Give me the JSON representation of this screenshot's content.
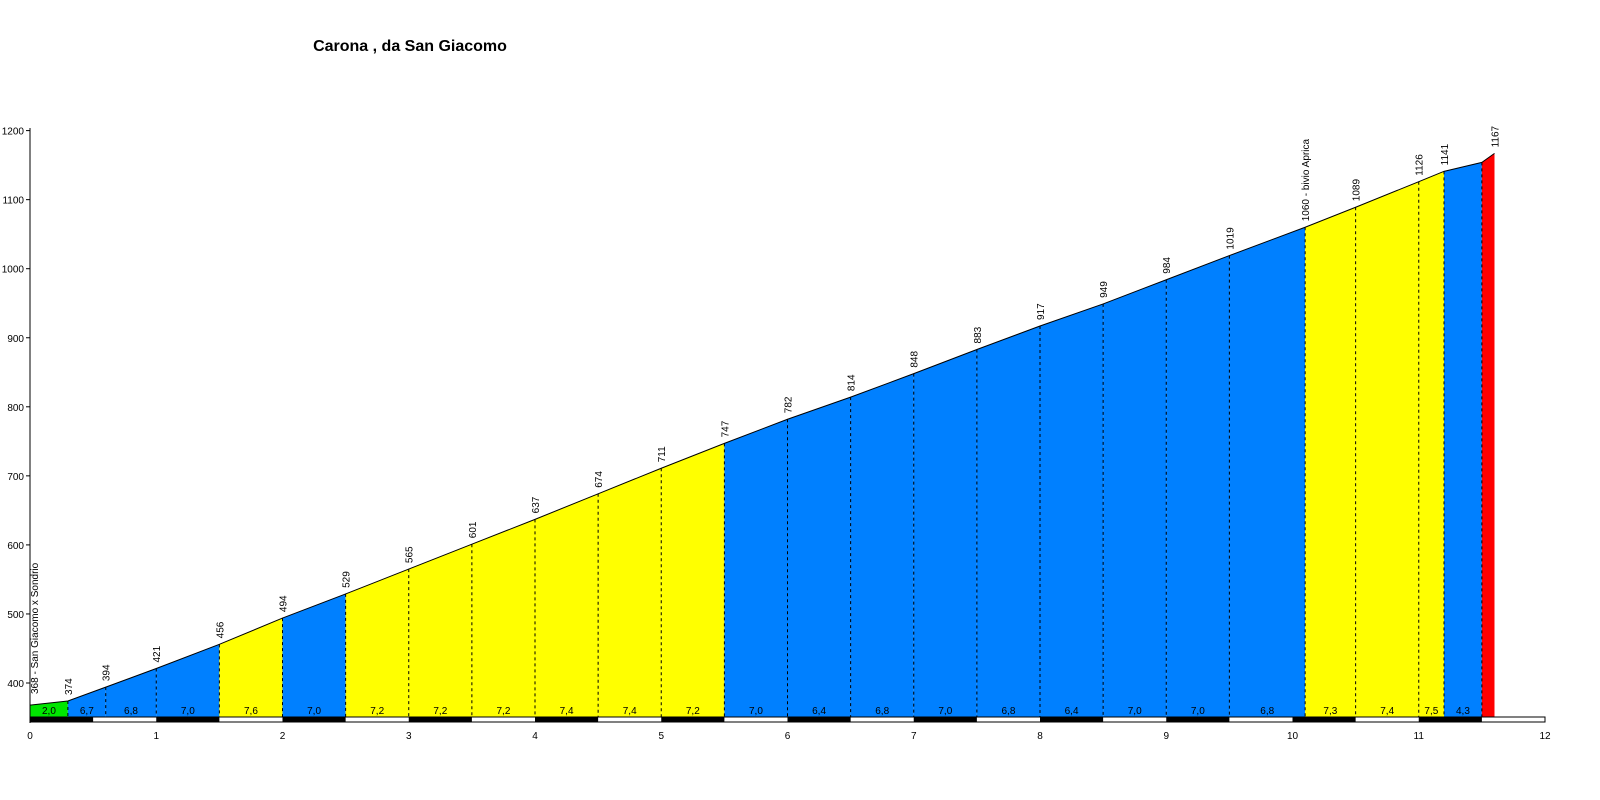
{
  "chart_data": {
    "type": "area",
    "title": "Carona , da San Giacomo",
    "xlabel": "",
    "ylabel": "",
    "xlim": [
      0,
      12
    ],
    "ylim": [
      350,
      1200
    ],
    "x_ticks": [
      "0",
      "1",
      "2",
      "3",
      "4",
      "5",
      "6",
      "7",
      "8",
      "9",
      "10",
      "11",
      "12"
    ],
    "y_ticks": [
      "400",
      "500",
      "600",
      "700",
      "800",
      "900",
      "1000",
      "1100",
      "1200"
    ],
    "grid": false,
    "colors": {
      "green": "#00e600",
      "blue": "#0080ff",
      "yellow": "#ffff00",
      "red": "#ff0000"
    },
    "profile": [
      {
        "x": 0.0,
        "y": 368
      },
      {
        "x": 0.3,
        "y": 374
      },
      {
        "x": 0.6,
        "y": 394
      },
      {
        "x": 1.0,
        "y": 421
      },
      {
        "x": 1.5,
        "y": 456
      },
      {
        "x": 2.0,
        "y": 494
      },
      {
        "x": 2.5,
        "y": 529
      },
      {
        "x": 3.0,
        "y": 565
      },
      {
        "x": 3.5,
        "y": 601
      },
      {
        "x": 4.0,
        "y": 637
      },
      {
        "x": 4.5,
        "y": 674
      },
      {
        "x": 5.0,
        "y": 711
      },
      {
        "x": 5.5,
        "y": 747
      },
      {
        "x": 6.0,
        "y": 782
      },
      {
        "x": 6.5,
        "y": 814
      },
      {
        "x": 7.0,
        "y": 848
      },
      {
        "x": 7.5,
        "y": 883
      },
      {
        "x": 8.0,
        "y": 917
      },
      {
        "x": 8.5,
        "y": 949
      },
      {
        "x": 9.0,
        "y": 984
      },
      {
        "x": 9.5,
        "y": 1019
      },
      {
        "x": 10.1,
        "y": 1060
      },
      {
        "x": 10.5,
        "y": 1089
      },
      {
        "x": 11.0,
        "y": 1126
      },
      {
        "x": 11.2,
        "y": 1141
      },
      {
        "x": 11.5,
        "y": 1154
      },
      {
        "x": 11.6,
        "y": 1167
      }
    ],
    "point_labels": [
      "368 - San Giacomo x Sondrio",
      "374",
      "394",
      "421",
      "456",
      "494",
      "529",
      "565",
      "601",
      "637",
      "674",
      "711",
      "747",
      "782",
      "814",
      "848",
      "883",
      "917",
      "949",
      "984",
      "1019",
      "1060 - bivio Aprica",
      "1089",
      "1126",
      "1141",
      "",
      "1167"
    ],
    "segments": [
      {
        "gradient": "2,0",
        "color": "green"
      },
      {
        "gradient": "6,7",
        "color": "blue"
      },
      {
        "gradient": "6,8",
        "color": "blue"
      },
      {
        "gradient": "7,0",
        "color": "blue"
      },
      {
        "gradient": "7,6",
        "color": "yellow"
      },
      {
        "gradient": "7,0",
        "color": "blue"
      },
      {
        "gradient": "7,2",
        "color": "yellow"
      },
      {
        "gradient": "7,2",
        "color": "yellow"
      },
      {
        "gradient": "7,2",
        "color": "yellow"
      },
      {
        "gradient": "7,4",
        "color": "yellow"
      },
      {
        "gradient": "7,4",
        "color": "yellow"
      },
      {
        "gradient": "7,2",
        "color": "yellow"
      },
      {
        "gradient": "7,0",
        "color": "blue"
      },
      {
        "gradient": "6,4",
        "color": "blue"
      },
      {
        "gradient": "6,8",
        "color": "blue"
      },
      {
        "gradient": "7,0",
        "color": "blue"
      },
      {
        "gradient": "6,8",
        "color": "blue"
      },
      {
        "gradient": "6,4",
        "color": "blue"
      },
      {
        "gradient": "7,0",
        "color": "blue"
      },
      {
        "gradient": "7,0",
        "color": "blue"
      },
      {
        "gradient": "6,8",
        "color": "blue"
      },
      {
        "gradient": "7,3",
        "color": "yellow"
      },
      {
        "gradient": "7,4",
        "color": "yellow"
      },
      {
        "gradient": "7,5",
        "color": "yellow"
      },
      {
        "gradient": "4,3",
        "color": "blue"
      },
      {
        "gradient": "",
        "color": "red"
      }
    ]
  }
}
